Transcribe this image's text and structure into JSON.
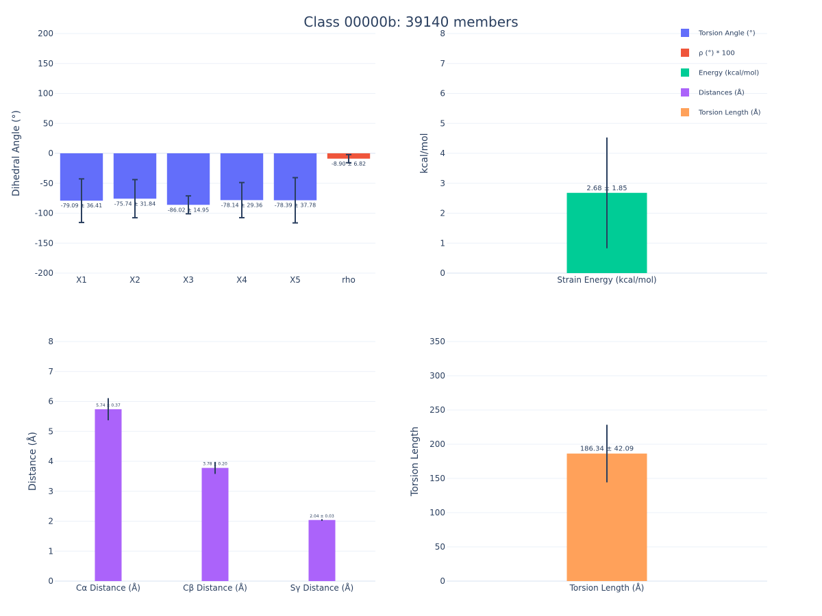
{
  "title": "Class 00000b: 39140 members",
  "chart_data": [
    {
      "id": "torsion",
      "type": "bar",
      "categories": [
        "X1",
        "X2",
        "X3",
        "X4",
        "X5",
        "rho"
      ],
      "values": [
        -79.09,
        -75.74,
        -86.02,
        -78.14,
        -78.39,
        -8.9
      ],
      "errors": [
        36.41,
        31.84,
        14.95,
        29.36,
        37.78,
        6.82
      ],
      "labels": [
        "-79.09 ± 36.41",
        "-75.74 ± 31.84",
        "-86.02 ± 14.95",
        "-78.14 ± 29.36",
        "-78.39 ± 37.78",
        "-8.90 ± 6.82"
      ],
      "colors": [
        "#636efa",
        "#636efa",
        "#636efa",
        "#636efa",
        "#636efa",
        "#ef553b"
      ],
      "ylabel": "Dihedral Angle (°)",
      "ylim": [
        -200,
        200
      ],
      "yticks": [
        -200,
        -150,
        -100,
        -50,
        0,
        50,
        100,
        150,
        200
      ],
      "grid": true
    },
    {
      "id": "energy",
      "type": "bar",
      "categories": [
        "Strain Energy (kcal/mol)"
      ],
      "values": [
        2.68
      ],
      "errors": [
        1.85
      ],
      "labels": [
        "2.68 ± 1.85"
      ],
      "colors": [
        "#00cc96"
      ],
      "ylabel": "kcal/mol",
      "ylim": [
        0,
        8
      ],
      "yticks": [
        0,
        1,
        2,
        3,
        4,
        5,
        6,
        7,
        8
      ],
      "grid": true
    },
    {
      "id": "distance",
      "type": "bar",
      "categories": [
        "Cα Distance (Å)",
        "Cβ Distance (Å)",
        "Sγ Distance (Å)"
      ],
      "values": [
        5.74,
        3.78,
        2.04
      ],
      "errors": [
        0.37,
        0.2,
        0.03
      ],
      "labels": [
        "5.74 ± 0.37",
        "3.78 ± 0.20",
        "2.04 ± 0.03"
      ],
      "colors": [
        "#ab63fa",
        "#ab63fa",
        "#ab63fa"
      ],
      "ylabel": "Distance (Å)",
      "ylim": [
        0,
        8
      ],
      "yticks": [
        0,
        1,
        2,
        3,
        4,
        5,
        6,
        7,
        8
      ],
      "grid": true
    },
    {
      "id": "length",
      "type": "bar",
      "categories": [
        "Torsion Length (Å)"
      ],
      "values": [
        186.34
      ],
      "errors": [
        42.09
      ],
      "labels": [
        "186.34 ± 42.09"
      ],
      "colors": [
        "#ffa15a"
      ],
      "ylabel": "Torsion Length",
      "ylim": [
        0,
        350
      ],
      "yticks": [
        0,
        50,
        100,
        150,
        200,
        250,
        300,
        350
      ],
      "grid": true
    }
  ],
  "legend": {
    "placement": "top-right",
    "entries": [
      {
        "name": "Torsion Angle (°)",
        "color": "#636efa"
      },
      {
        "name": "ρ (°) * 100",
        "color": "#ef553b"
      },
      {
        "name": "Energy (kcal/mol)",
        "color": "#00cc96"
      },
      {
        "name": "Distances (Å)",
        "color": "#ab63fa"
      },
      {
        "name": "Torsion Length (Å)",
        "color": "#ffa15a"
      }
    ]
  }
}
